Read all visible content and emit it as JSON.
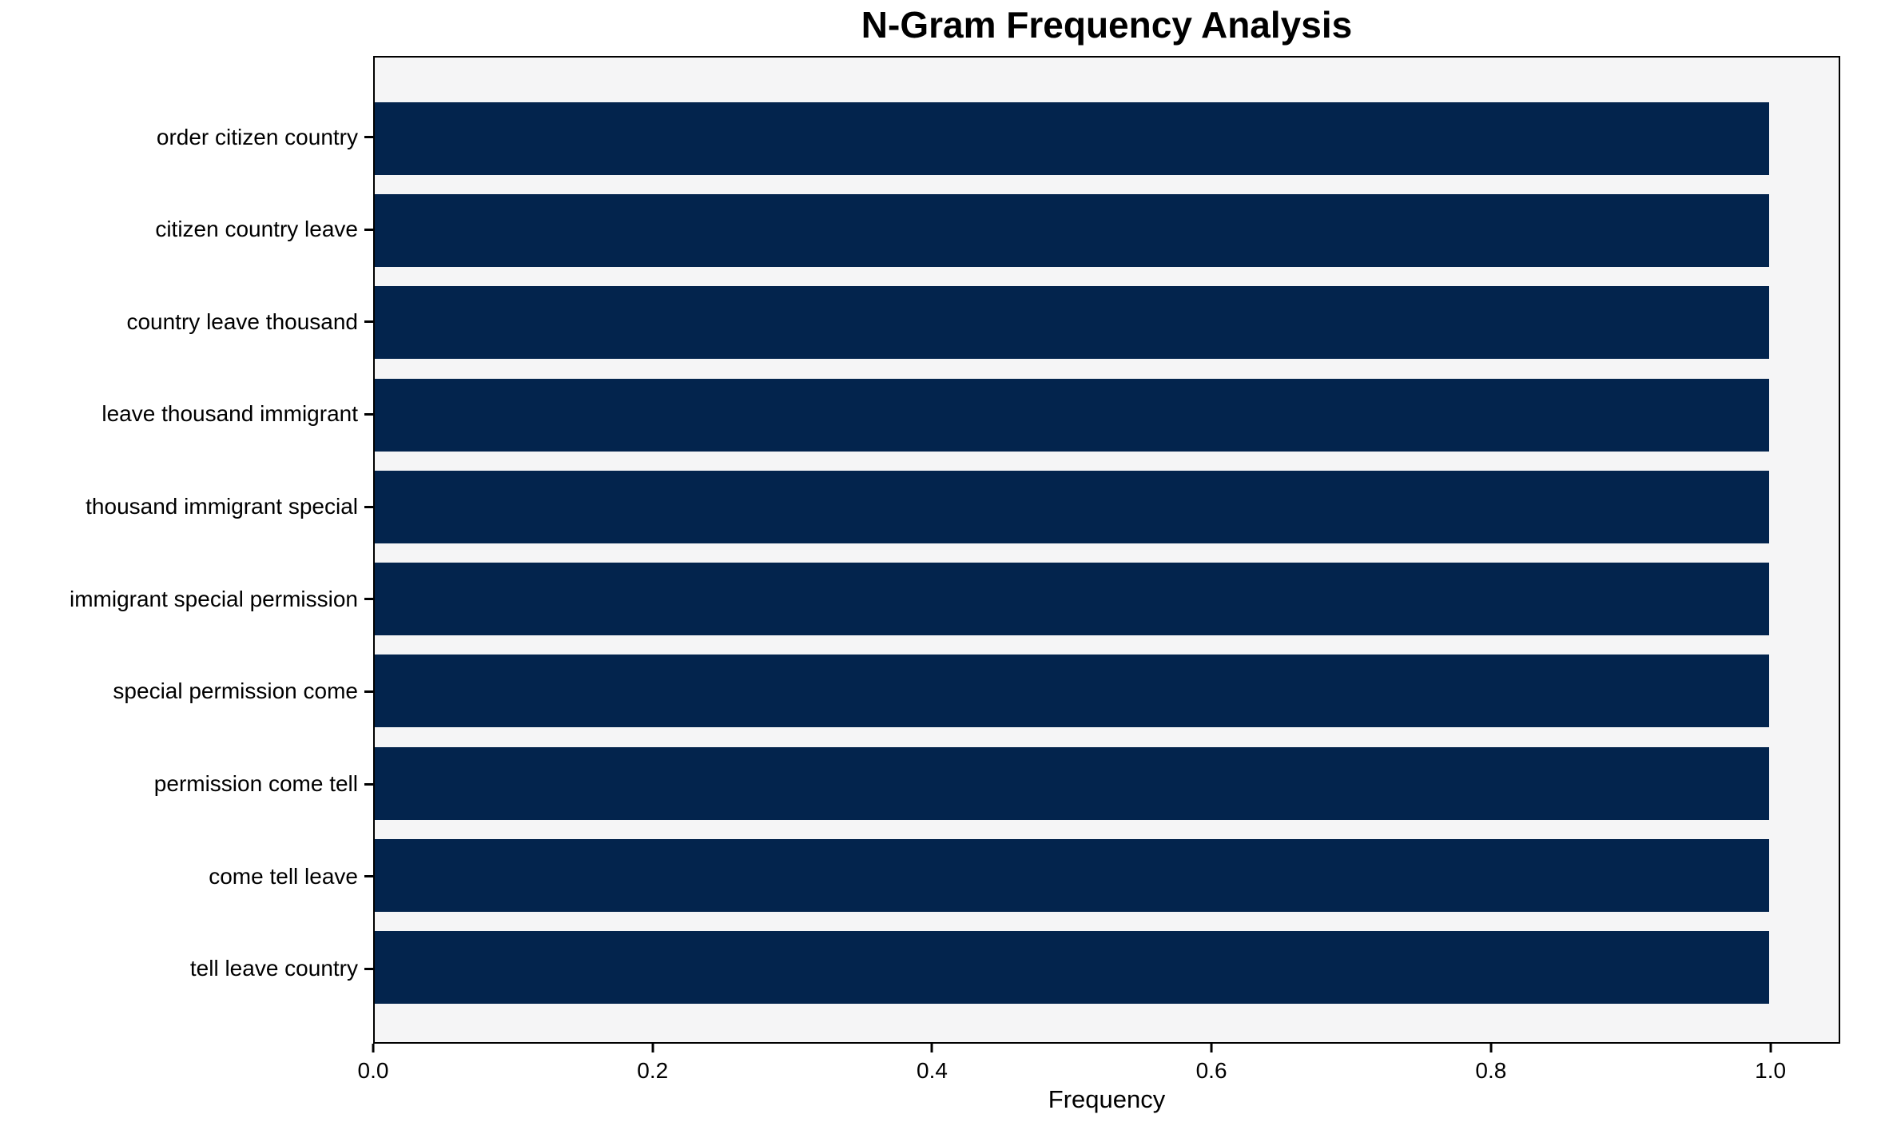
{
  "chart_data": {
    "type": "bar",
    "orientation": "horizontal",
    "title": "N-Gram Frequency Analysis",
    "xlabel": "Frequency",
    "ylabel": "",
    "categories": [
      "order citizen country",
      "citizen country leave",
      "country leave thousand",
      "leave thousand immigrant",
      "thousand immigrant special",
      "immigrant special permission",
      "special permission come",
      "permission come tell",
      "come tell leave",
      "tell leave country"
    ],
    "values": [
      1.0,
      1.0,
      1.0,
      1.0,
      1.0,
      1.0,
      1.0,
      1.0,
      1.0,
      1.0
    ],
    "xlim": [
      0,
      1.05
    ],
    "xticks": [
      "0.0",
      "0.2",
      "0.4",
      "0.6",
      "0.8",
      "1.0"
    ],
    "grid": false,
    "legend": "none",
    "colors": {
      "bar": "#03244d",
      "plot_background": "#f5f5f6",
      "figure_background": "#ffffff",
      "spine": "#000000",
      "text": "#000000"
    }
  }
}
